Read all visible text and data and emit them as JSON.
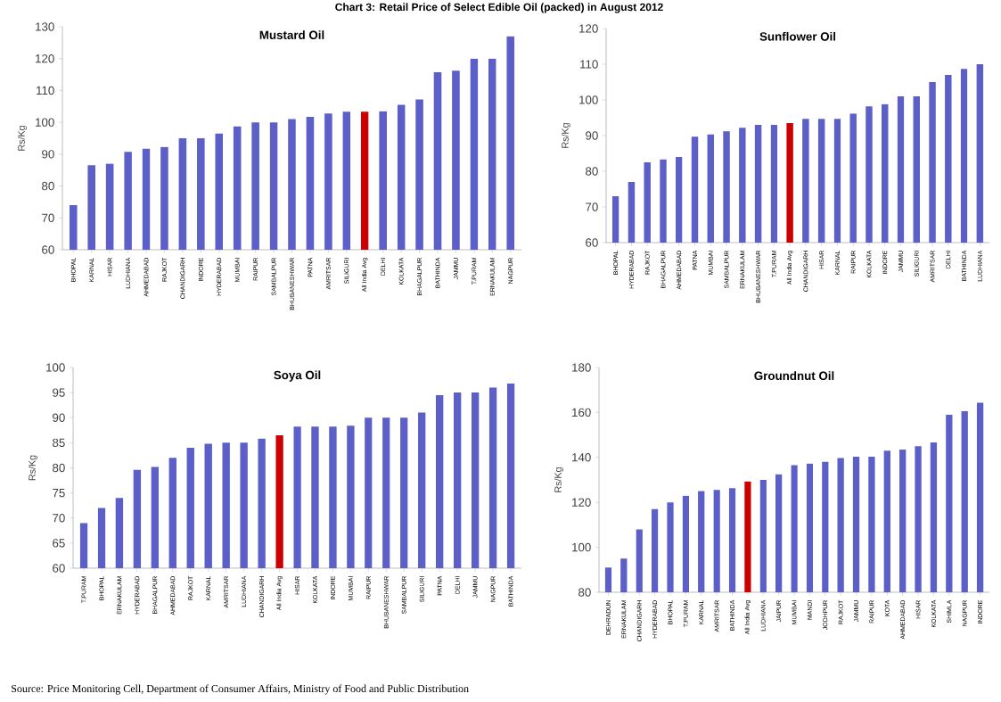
{
  "chart_data": [
    {
      "type": "bar",
      "title": "Mustard Oil",
      "ylabel": "Rs/Kg",
      "annotations": [
        "Chart 3: Retail Price of Select Edible Oil (packed) in August 2012"
      ],
      "categories": [
        "BHOPAL",
        "KARNAL",
        "HISAR",
        "LUDHIANA",
        "AHMEDABAD",
        "RAJKOT",
        "CHANDIGARH",
        "INDORE",
        "HYDERABAD",
        "MUMBAI",
        "RAIPUR",
        "SAMBALPUR",
        "BHUBANESHWAR",
        "PATNA",
        "AMRITSAR",
        "SILIGURI",
        "All India Avg",
        "DELHI",
        "KOLKATA",
        "BHAGALPUR",
        "BATHINDA",
        "JAMMU",
        "T.PURAM",
        "ERNAKULAM",
        "NAGPUR"
      ],
      "values": [
        74,
        86.5,
        87,
        90.7,
        91.7,
        92.3,
        95,
        95,
        96.5,
        98.7,
        100,
        100,
        101,
        101.7,
        102.8,
        103.3,
        103.3,
        103.5,
        105.5,
        107.2,
        115.7,
        116.2,
        120,
        120,
        127
      ],
      "colors": [
        "#5b5fc7",
        "#5b5fc7",
        "#5b5fc7",
        "#5b5fc7",
        "#5b5fc7",
        "#5b5fc7",
        "#5b5fc7",
        "#5b5fc7",
        "#5b5fc7",
        "#5b5fc7",
        "#5b5fc7",
        "#5b5fc7",
        "#5b5fc7",
        "#5b5fc7",
        "#5b5fc7",
        "#5b5fc7",
        "#cc0000",
        "#5b5fc7",
        "#5b5fc7",
        "#5b5fc7",
        "#5b5fc7",
        "#5b5fc7",
        "#5b5fc7",
        "#5b5fc7",
        "#5b5fc7"
      ],
      "ylim": [
        60,
        130
      ],
      "yticks": [
        60,
        70,
        80,
        90,
        100,
        110,
        120,
        130
      ]
    },
    {
      "type": "bar",
      "title": "Sunflower Oil",
      "ylabel": "Rs/Kg",
      "categories": [
        "BHOPAL",
        "HYDERABAD",
        "RAJKOT",
        "BHAGALPUR",
        "AHMEDABAD",
        "PATNA",
        "MUMBAI",
        "SAMBALPUR",
        "ERNAKULAM",
        "BHUBANESHWAR",
        "T.PURAM",
        "All India Avg",
        "CHANDIGARH",
        "HISAR",
        "KARNAL",
        "RAIPUR",
        "KOLKATA",
        "INDORE",
        "JAMMU",
        "SILIGURI",
        "AMRITSAR",
        "DELHI",
        "BATHINDA",
        "LUDHIANA"
      ],
      "values": [
        73,
        77,
        82.5,
        83.3,
        84,
        89.7,
        90.3,
        91.2,
        92.2,
        93,
        93,
        93.5,
        94.7,
        94.7,
        94.7,
        96.2,
        98.2,
        98.8,
        101,
        101,
        105,
        107,
        108.7,
        110
      ],
      "colors": [
        "#5b5fc7",
        "#5b5fc7",
        "#5b5fc7",
        "#5b5fc7",
        "#5b5fc7",
        "#5b5fc7",
        "#5b5fc7",
        "#5b5fc7",
        "#5b5fc7",
        "#5b5fc7",
        "#5b5fc7",
        "#cc0000",
        "#5b5fc7",
        "#5b5fc7",
        "#5b5fc7",
        "#5b5fc7",
        "#5b5fc7",
        "#5b5fc7",
        "#5b5fc7",
        "#5b5fc7",
        "#5b5fc7",
        "#5b5fc7",
        "#5b5fc7",
        "#5b5fc7"
      ],
      "ylim": [
        60,
        120
      ],
      "yticks": [
        60,
        70,
        80,
        90,
        100,
        110,
        120
      ]
    },
    {
      "type": "bar",
      "title": "Soya Oil",
      "ylabel": "Rs/Kg",
      "annotations": [
        "Source: Price Monitoring Cell, Department of Consumer Affairs, Ministry of Food and Public Distribution"
      ],
      "categories": [
        "T.PURAM",
        "BHOPAL",
        "ERNAKULAM",
        "HYDERABAD",
        "BHAGALPUR",
        "AHMEDABAD",
        "RAJKOT",
        "KARNAL",
        "AMRITSAR",
        "LUDHIANA",
        "CHANDIGARH",
        "All India Avg",
        "HISAR",
        "KOLKATA",
        "INDORE",
        "MUMBAI",
        "RAIPUR",
        "BHUBANESHWAR",
        "SAMBALPUR",
        "SILIGURI",
        "PATNA",
        "DELHI",
        "JAMMU",
        "NAGPUR",
        "BATHINDA"
      ],
      "values": [
        69,
        72,
        74,
        79.6,
        80.2,
        82,
        84,
        84.8,
        85,
        85,
        85.8,
        86.5,
        88.2,
        88.2,
        88.2,
        88.4,
        90,
        90,
        90,
        91,
        94.5,
        95,
        95,
        96,
        96.8
      ],
      "colors": [
        "#5b5fc7",
        "#5b5fc7",
        "#5b5fc7",
        "#5b5fc7",
        "#5b5fc7",
        "#5b5fc7",
        "#5b5fc7",
        "#5b5fc7",
        "#5b5fc7",
        "#5b5fc7",
        "#5b5fc7",
        "#cc0000",
        "#5b5fc7",
        "#5b5fc7",
        "#5b5fc7",
        "#5b5fc7",
        "#5b5fc7",
        "#5b5fc7",
        "#5b5fc7",
        "#5b5fc7",
        "#5b5fc7",
        "#5b5fc7",
        "#5b5fc7",
        "#5b5fc7",
        "#5b5fc7"
      ],
      "ylim": [
        60,
        100
      ],
      "yticks": [
        60,
        65,
        70,
        75,
        80,
        85,
        90,
        95,
        100
      ]
    },
    {
      "type": "bar",
      "title": "Groundnut Oil",
      "ylabel": "Rs/Kg",
      "categories": [
        "DEHRADUN",
        "ERNAKULAM",
        "CHANDIGARH",
        "HYDERABAD",
        "BHOPAL",
        "T.PURAM",
        "KARNAL",
        "AMRITSAR",
        "BATHINDA",
        "All India Avg",
        "LUDHIANA",
        "JAIPUR",
        "MUMBAI",
        "MANDI",
        "JODHPUR",
        "RAJKOT",
        "JAMMU",
        "RAIPUR",
        "KOTA",
        "AHMEDABAD",
        "HISAR",
        "KOLKATA",
        "SHIMLA",
        "NAGPUR",
        "INDORE"
      ],
      "values": [
        91,
        95,
        108,
        117,
        120,
        123,
        125,
        125.5,
        126.3,
        129.3,
        130,
        132.5,
        136.5,
        137.2,
        138,
        139.7,
        140.3,
        140.3,
        143,
        143.5,
        145,
        146.7,
        159,
        160.5,
        164.3
      ],
      "colors": [
        "#5b5fc7",
        "#5b5fc7",
        "#5b5fc7",
        "#5b5fc7",
        "#5b5fc7",
        "#5b5fc7",
        "#5b5fc7",
        "#5b5fc7",
        "#5b5fc7",
        "#cc0000",
        "#5b5fc7",
        "#5b5fc7",
        "#5b5fc7",
        "#5b5fc7",
        "#5b5fc7",
        "#5b5fc7",
        "#5b5fc7",
        "#5b5fc7",
        "#5b5fc7",
        "#5b5fc7",
        "#5b5fc7",
        "#5b5fc7",
        "#5b5fc7",
        "#5b5fc7",
        "#5b5fc7"
      ],
      "ylim": [
        80,
        180
      ],
      "yticks": [
        80,
        100,
        120,
        140,
        160,
        180
      ]
    }
  ]
}
